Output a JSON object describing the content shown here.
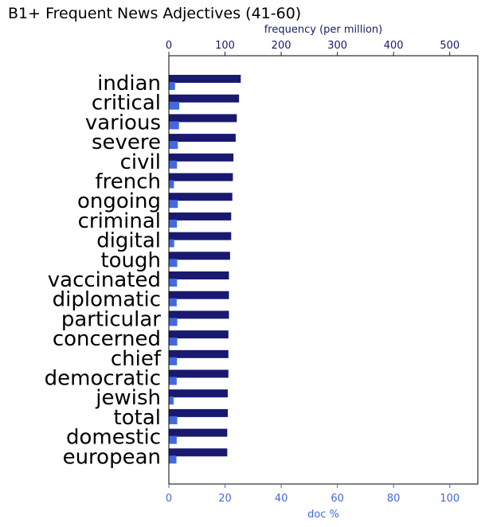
{
  "chart_data": {
    "type": "bar",
    "orientation": "horizontal",
    "title": "B1+ Frequent News Adjectives (41-60)",
    "categories": [
      "indian",
      "critical",
      "various",
      "severe",
      "civil",
      "french",
      "ongoing",
      "criminal",
      "digital",
      "tough",
      "vaccinated",
      "diplomatic",
      "particular",
      "concerned",
      "chief",
      "democratic",
      "jewish",
      "total",
      "domestic",
      "european"
    ],
    "series": [
      {
        "axis": "top",
        "color": "#191970",
        "values": [
          128,
          125,
          121,
          119,
          115,
          114,
          113,
          111,
          111,
          109,
          107,
          107,
          107,
          106,
          106,
          106,
          105,
          105,
          104,
          104
        ]
      },
      {
        "axis": "bottom",
        "color": "#4169e1",
        "values": [
          2.2,
          3.7,
          3.6,
          3.2,
          2.9,
          1.8,
          3.2,
          2.9,
          1.9,
          3.0,
          2.9,
          2.8,
          3.0,
          3.0,
          2.9,
          2.8,
          1.7,
          3.0,
          2.8,
          2.7
        ]
      }
    ],
    "xlabel_bottom": "doc %",
    "xlabel_top": "frequency (per million)",
    "xlim_bottom": [
      0,
      110
    ],
    "xlim_top": [
      0,
      550
    ],
    "xticks_bottom": [
      "0",
      "20",
      "40",
      "60",
      "80",
      "100"
    ],
    "xticks_top": [
      "0",
      "100",
      "200",
      "300",
      "400",
      "500"
    ],
    "bottom_axis_color": "#4169e1",
    "top_axis_color": "#191970",
    "grid": false,
    "legend": "none"
  }
}
